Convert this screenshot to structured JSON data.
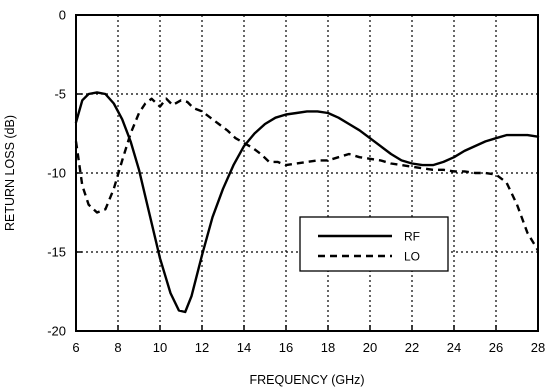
{
  "chart_data": {
    "type": "line",
    "title": "",
    "xlabel": "FREQUENCY (GHz)",
    "ylabel": "RETURN LOSS (dB)",
    "xlim": [
      6,
      28
    ],
    "ylim": [
      -20,
      0
    ],
    "xticks": [
      "6",
      "8",
      "10",
      "12",
      "14",
      "16",
      "18",
      "20",
      "22",
      "24",
      "26",
      "28"
    ],
    "yticks": [
      "0",
      "-5",
      "-10",
      "-15",
      "-20"
    ],
    "grid": "dotted",
    "legend_position": "lower-right",
    "series": [
      {
        "name": "RF",
        "style": "solid",
        "color": "#000000",
        "x": [
          6.0,
          6.3,
          6.6,
          7.0,
          7.4,
          7.8,
          8.2,
          8.6,
          9.0,
          9.5,
          10.0,
          10.5,
          10.9,
          11.2,
          11.5,
          12.0,
          12.5,
          13.0,
          13.5,
          14.0,
          14.5,
          15.0,
          15.5,
          16.0,
          16.5,
          17.0,
          17.5,
          18.0,
          18.5,
          19.0,
          19.5,
          20.0,
          20.5,
          21.0,
          21.5,
          22.0,
          22.5,
          23.0,
          23.5,
          24.0,
          24.5,
          25.0,
          25.5,
          26.0,
          26.5,
          27.0,
          27.5,
          28.0
        ],
        "y": [
          -6.8,
          -5.4,
          -5.0,
          -4.9,
          -5.0,
          -5.6,
          -6.6,
          -8.0,
          -9.8,
          -12.6,
          -15.4,
          -17.6,
          -18.7,
          -18.8,
          -17.8,
          -15.2,
          -12.8,
          -11.0,
          -9.5,
          -8.3,
          -7.5,
          -6.9,
          -6.5,
          -6.3,
          -6.2,
          -6.1,
          -6.1,
          -6.2,
          -6.5,
          -6.9,
          -7.3,
          -7.8,
          -8.3,
          -8.8,
          -9.2,
          -9.4,
          -9.5,
          -9.5,
          -9.3,
          -9.0,
          -8.6,
          -8.3,
          -8.0,
          -7.8,
          -7.6,
          -7.6,
          -7.6,
          -7.7
        ]
      },
      {
        "name": "LO",
        "style": "dashed",
        "color": "#000000",
        "x": [
          6.0,
          6.3,
          6.6,
          7.0,
          7.4,
          7.8,
          8.2,
          8.6,
          9.0,
          9.3,
          9.6,
          10.0,
          10.3,
          10.6,
          11.0,
          11.3,
          11.6,
          12.0,
          12.4,
          12.8,
          13.2,
          13.6,
          14.0,
          14.4,
          14.8,
          15.2,
          15.6,
          16.0,
          16.5,
          17.0,
          17.5,
          18.0,
          18.5,
          19.0,
          19.5,
          20.0,
          20.5,
          21.0,
          21.5,
          22.0,
          22.5,
          23.0,
          23.5,
          24.0,
          24.5,
          25.0,
          25.5,
          26.0,
          26.5,
          27.0,
          27.5,
          28.0
        ],
        "y": [
          -8.0,
          -10.8,
          -12.0,
          -12.5,
          -12.3,
          -11.0,
          -9.2,
          -7.5,
          -6.2,
          -5.6,
          -5.3,
          -5.8,
          -5.3,
          -5.7,
          -5.4,
          -5.5,
          -5.9,
          -6.1,
          -6.5,
          -6.9,
          -7.3,
          -7.8,
          -8.1,
          -8.4,
          -8.8,
          -9.3,
          -9.3,
          -9.5,
          -9.4,
          -9.3,
          -9.2,
          -9.2,
          -9.0,
          -8.8,
          -9.0,
          -9.1,
          -9.2,
          -9.4,
          -9.5,
          -9.6,
          -9.7,
          -9.8,
          -9.8,
          -9.9,
          -9.9,
          -10.0,
          -10.0,
          -10.1,
          -10.6,
          -12.0,
          -13.8,
          -14.9
        ]
      }
    ]
  }
}
